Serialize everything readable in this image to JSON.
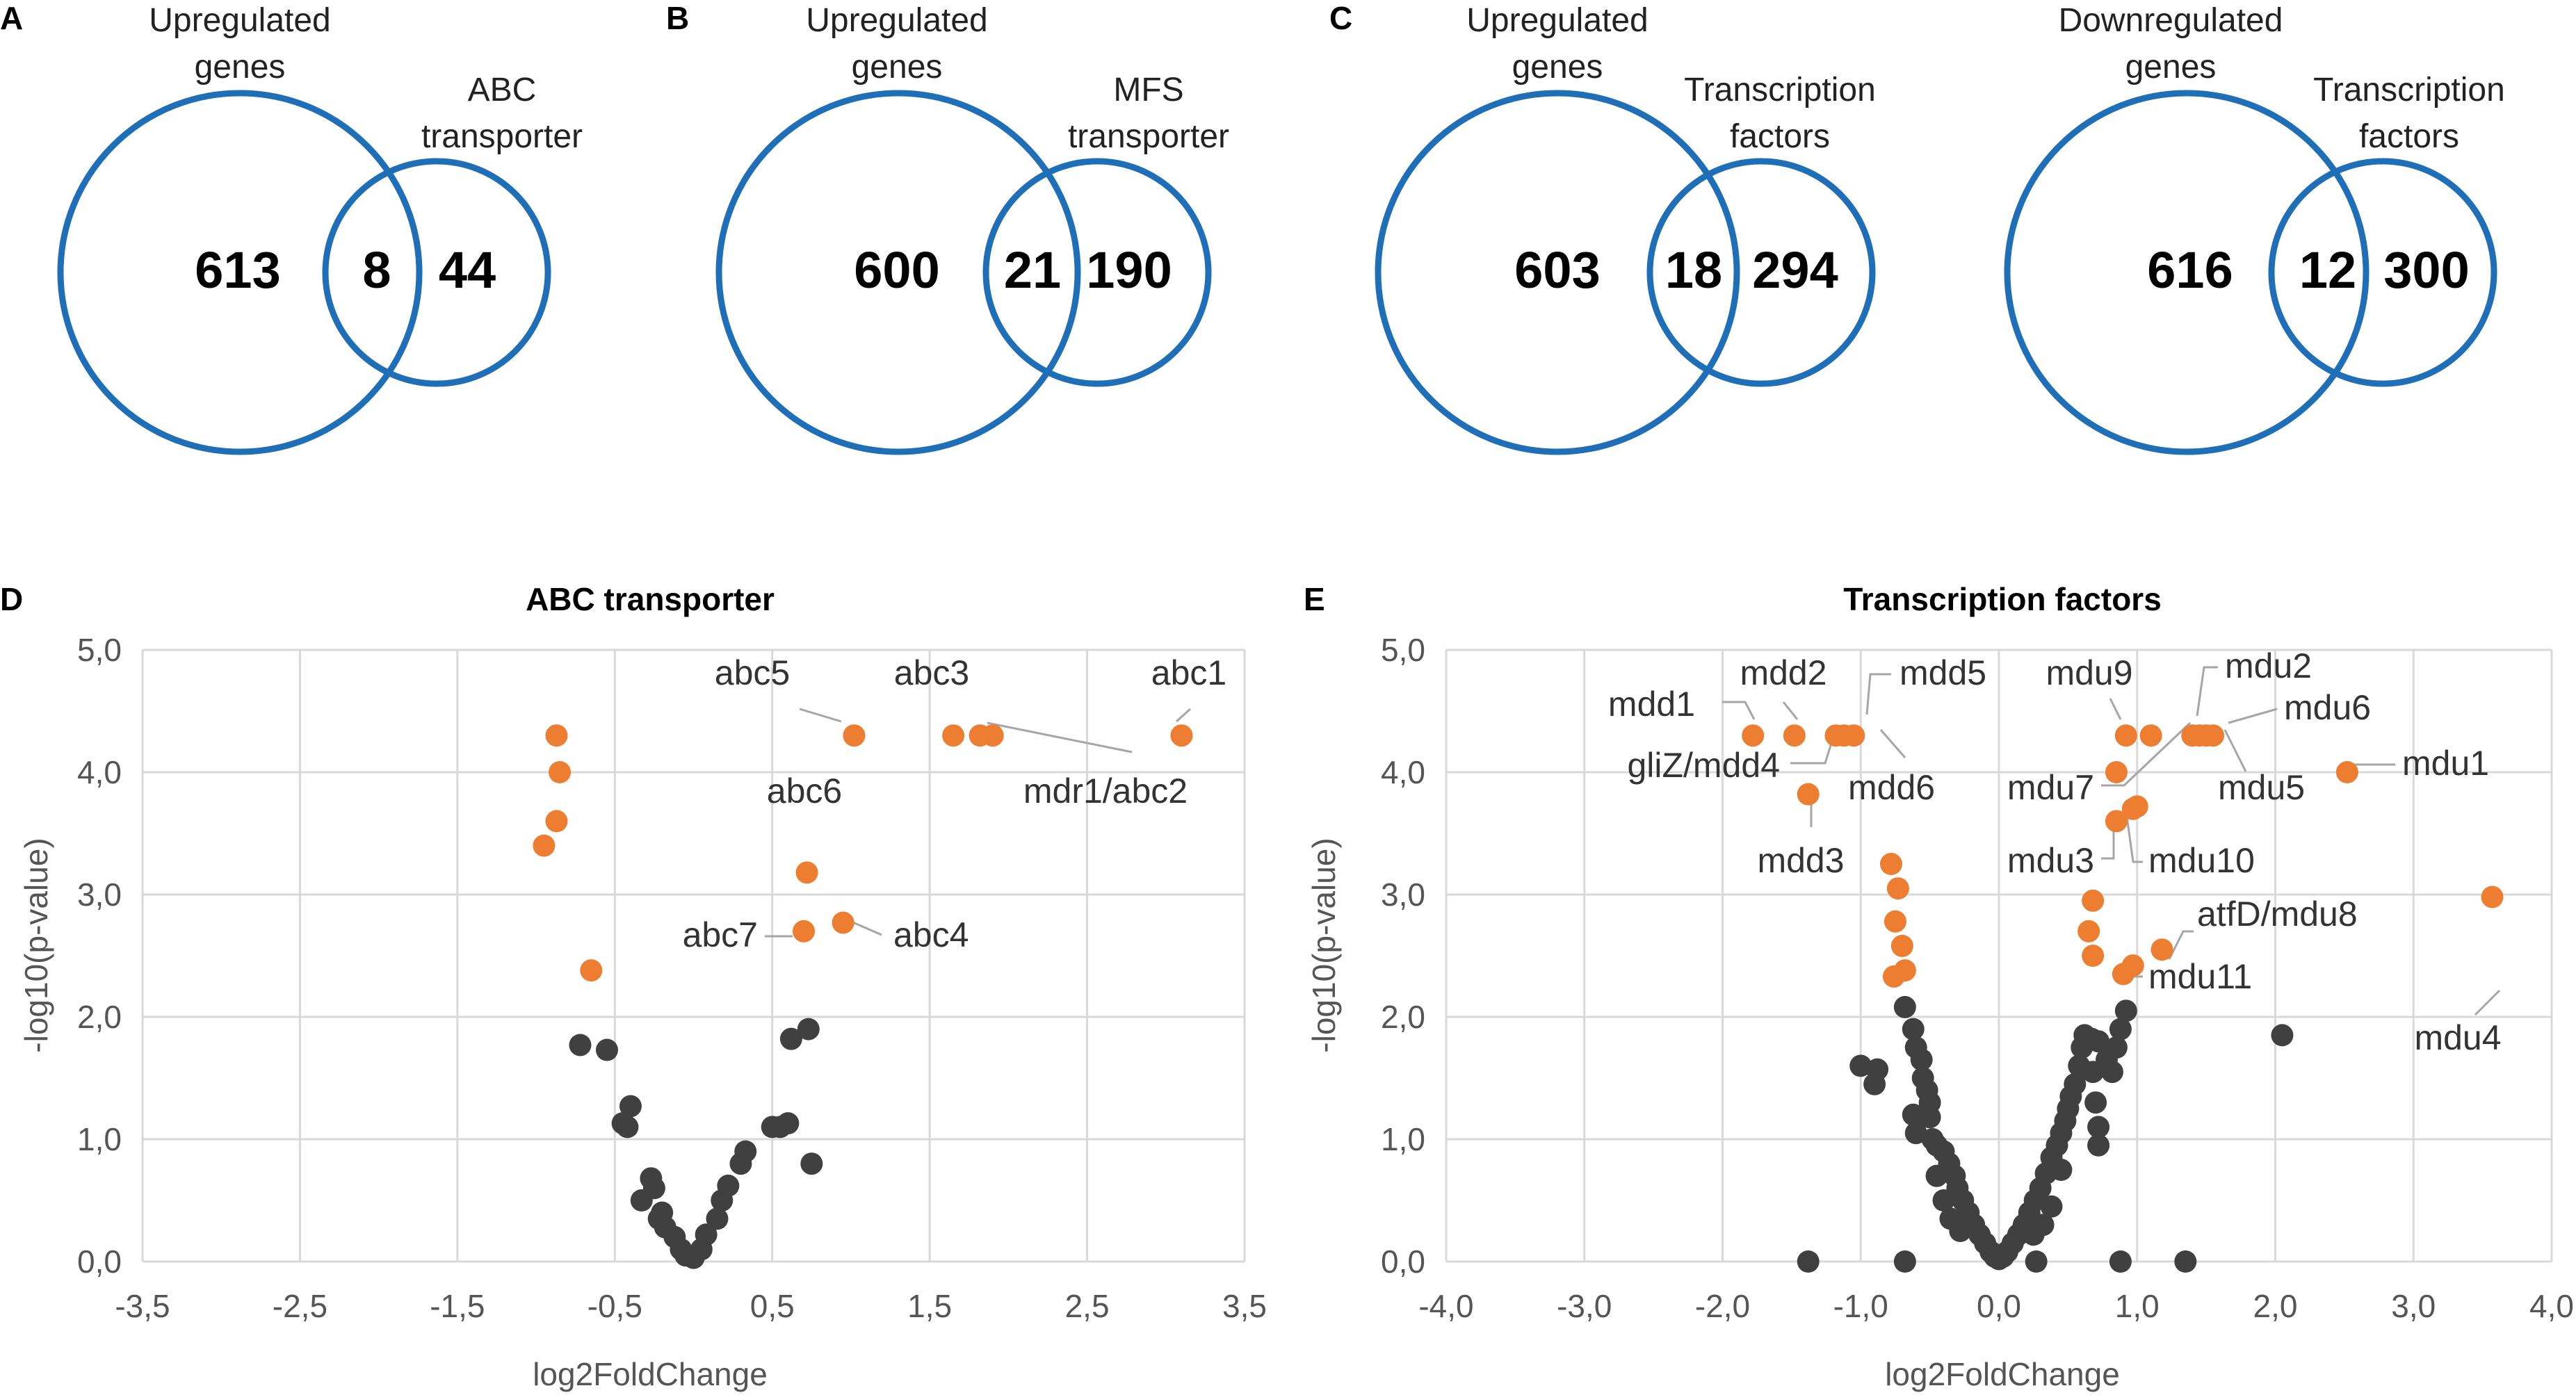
{
  "panels": {
    "A": "A",
    "B": "B",
    "C": "C",
    "D": "D",
    "E": "E"
  },
  "venns": [
    {
      "panel": "A",
      "left_label": [
        "Upregulated",
        "genes"
      ],
      "right_label": [
        "ABC",
        "transporter"
      ],
      "left_only": "613",
      "overlap": "8",
      "right_only": "44"
    },
    {
      "panel": "B",
      "left_label": [
        "Upregulated",
        "genes"
      ],
      "right_label": [
        "MFS",
        "transporter"
      ],
      "left_only": "600",
      "overlap": "21",
      "right_only": "190"
    },
    {
      "panel": "C",
      "left_label": [
        "Upregulated",
        "genes"
      ],
      "right_label": [
        "Transcription",
        "factors"
      ],
      "left_only": "603",
      "overlap": "18",
      "right_only": "294"
    },
    {
      "panel": "",
      "left_label": [
        "Downregulated",
        "genes"
      ],
      "right_label": [
        "Transcription",
        "factors"
      ],
      "left_only": "616",
      "overlap": "12",
      "right_only": "300"
    }
  ],
  "colors": {
    "venn": "#1f6fb8",
    "highlight": "#ed7d31",
    "other": "#404040",
    "grid": "#d9d9d9"
  },
  "chart_data": [
    {
      "panel": "D",
      "type": "scatter",
      "title": "ABC transporter",
      "xlabel": "log2FoldChange",
      "ylabel": "-log10(p-value)",
      "xlim": [
        -3.5,
        3.5
      ],
      "ylim": [
        0,
        5
      ],
      "xticks": [
        "-3,5",
        "-2,5",
        "-1,5",
        "-0,5",
        "0,5",
        "1,5",
        "2,5",
        "3,5"
      ],
      "xtick_values": [
        -3.5,
        -2.5,
        -1.5,
        -0.5,
        0.5,
        1.5,
        2.5,
        3.5
      ],
      "yticks": [
        "0,0",
        "1,0",
        "2,0",
        "3,0",
        "4,0",
        "5,0"
      ],
      "ytick_values": [
        0,
        1,
        2,
        3,
        4,
        5
      ],
      "grid": true,
      "highlighted": [
        [
          -0.87,
          4.3
        ],
        [
          -0.85,
          4.0
        ],
        [
          -0.87,
          3.6
        ],
        [
          -0.95,
          3.4
        ],
        [
          -0.65,
          2.38
        ],
        [
          1.02,
          4.3
        ],
        [
          1.65,
          4.3
        ],
        [
          1.82,
          4.3
        ],
        [
          1.9,
          4.3
        ],
        [
          3.1,
          4.3
        ],
        [
          0.72,
          3.18
        ],
        [
          0.7,
          2.7
        ],
        [
          0.95,
          2.77
        ]
      ],
      "others": [
        [
          -0.72,
          1.77
        ],
        [
          -0.55,
          1.73
        ],
        [
          -0.45,
          1.13
        ],
        [
          -0.42,
          1.1
        ],
        [
          -0.4,
          1.27
        ],
        [
          -0.33,
          0.5
        ],
        [
          -0.27,
          0.68
        ],
        [
          -0.25,
          0.6
        ],
        [
          -0.22,
          0.35
        ],
        [
          -0.2,
          0.4
        ],
        [
          -0.18,
          0.28
        ],
        [
          -0.12,
          0.2
        ],
        [
          -0.08,
          0.1
        ],
        [
          -0.05,
          0.05
        ],
        [
          0.0,
          0.03
        ],
        [
          0.05,
          0.1
        ],
        [
          0.08,
          0.22
        ],
        [
          0.15,
          0.35
        ],
        [
          0.18,
          0.5
        ],
        [
          0.22,
          0.62
        ],
        [
          0.3,
          0.8
        ],
        [
          0.33,
          0.9
        ],
        [
          0.5,
          1.1
        ],
        [
          0.55,
          1.1
        ],
        [
          0.6,
          1.13
        ],
        [
          0.62,
          1.82
        ],
        [
          0.73,
          1.9
        ],
        [
          0.75,
          0.8
        ]
      ],
      "labels": [
        {
          "text": "abc5",
          "x": 1.02,
          "y": 4.3
        },
        {
          "text": "abc3",
          "x": 1.65,
          "y": 4.3
        },
        {
          "text": "abc1",
          "x": 3.1,
          "y": 4.3
        },
        {
          "text": "mdr1/abc2",
          "x": 1.9,
          "y": 4.3
        },
        {
          "text": "abc6",
          "x": 0.72,
          "y": 3.18
        },
        {
          "text": "abc7",
          "x": 0.7,
          "y": 2.7
        },
        {
          "text": "abc4",
          "x": 0.95,
          "y": 2.77
        }
      ]
    },
    {
      "panel": "E",
      "type": "scatter",
      "title": "Transcription factors",
      "xlabel": "log2FoldChange",
      "ylabel": "-log10(p-value)",
      "xlim": [
        -4.0,
        4.0
      ],
      "ylim": [
        0,
        5
      ],
      "xticks": [
        "-4,0",
        "-3,0",
        "-2,0",
        "-1,0",
        "0,0",
        "1,0",
        "2,0",
        "3,0",
        "4,0"
      ],
      "xtick_values": [
        -4,
        -3,
        -2,
        -1,
        0,
        1,
        2,
        3,
        4
      ],
      "yticks": [
        "0,0",
        "1,0",
        "2,0",
        "3,0",
        "4,0",
        "5,0"
      ],
      "ytick_values": [
        0,
        1,
        2,
        3,
        4,
        5
      ],
      "grid": true,
      "highlighted": [
        [
          -1.78,
          4.3
        ],
        [
          -1.48,
          4.3
        ],
        [
          -1.18,
          4.3
        ],
        [
          -1.12,
          4.3
        ],
        [
          -1.05,
          4.3
        ],
        [
          -1.38,
          3.82
        ],
        [
          -0.78,
          3.25
        ],
        [
          -0.73,
          3.05
        ],
        [
          -0.75,
          2.78
        ],
        [
          -0.7,
          2.58
        ],
        [
          -0.68,
          2.38
        ],
        [
          -0.76,
          2.33
        ],
        [
          0.92,
          4.3
        ],
        [
          1.1,
          4.3
        ],
        [
          1.4,
          4.3
        ],
        [
          1.45,
          4.3
        ],
        [
          1.5,
          4.3
        ],
        [
          1.55,
          4.3
        ],
        [
          0.85,
          4.0
        ],
        [
          2.52,
          4.0
        ],
        [
          0.97,
          3.7
        ],
        [
          0.85,
          3.6
        ],
        [
          1.0,
          3.72
        ],
        [
          0.68,
          2.95
        ],
        [
          0.65,
          2.7
        ],
        [
          0.68,
          2.5
        ],
        [
          1.18,
          2.55
        ],
        [
          0.97,
          2.42
        ],
        [
          0.9,
          2.35
        ],
        [
          3.57,
          2.98
        ]
      ],
      "others": [
        [
          -1.38,
          0.0
        ],
        [
          -0.68,
          0.0
        ],
        [
          0.27,
          0.0
        ],
        [
          0.88,
          0.0
        ],
        [
          1.35,
          0.0
        ],
        [
          2.05,
          1.85
        ],
        [
          -1.0,
          1.6
        ],
        [
          -0.88,
          1.57
        ],
        [
          -0.9,
          1.45
        ],
        [
          -0.68,
          2.08
        ],
        [
          -0.62,
          1.9
        ],
        [
          -0.6,
          1.75
        ],
        [
          -0.56,
          1.65
        ],
        [
          -0.55,
          1.5
        ],
        [
          -0.52,
          1.4
        ],
        [
          -0.5,
          1.3
        ],
        [
          -0.62,
          1.2
        ],
        [
          -0.6,
          1.05
        ],
        [
          -0.5,
          1.18
        ],
        [
          -0.48,
          1.0
        ],
        [
          -0.45,
          0.95
        ],
        [
          -0.4,
          0.9
        ],
        [
          -0.36,
          0.8
        ],
        [
          -0.32,
          0.7
        ],
        [
          -0.3,
          0.6
        ],
        [
          -0.26,
          0.5
        ],
        [
          -0.22,
          0.4
        ],
        [
          -0.18,
          0.3
        ],
        [
          -0.14,
          0.22
        ],
        [
          -0.1,
          0.15
        ],
        [
          -0.06,
          0.08
        ],
        [
          -0.03,
          0.04
        ],
        [
          0.0,
          0.02
        ],
        [
          0.03,
          0.04
        ],
        [
          0.06,
          0.08
        ],
        [
          0.1,
          0.15
        ],
        [
          0.14,
          0.22
        ],
        [
          0.18,
          0.3
        ],
        [
          0.22,
          0.4
        ],
        [
          0.26,
          0.5
        ],
        [
          0.3,
          0.6
        ],
        [
          0.34,
          0.72
        ],
        [
          0.38,
          0.85
        ],
        [
          0.42,
          0.95
        ],
        [
          0.45,
          1.05
        ],
        [
          0.48,
          1.15
        ],
        [
          0.5,
          1.25
        ],
        [
          0.52,
          1.35
        ],
        [
          0.55,
          1.45
        ],
        [
          0.58,
          1.6
        ],
        [
          0.6,
          1.75
        ],
        [
          0.62,
          1.85
        ],
        [
          0.67,
          1.82
        ],
        [
          0.72,
          1.8
        ],
        [
          0.78,
          1.65
        ],
        [
          0.82,
          1.55
        ],
        [
          0.85,
          1.75
        ],
        [
          0.88,
          1.9
        ],
        [
          0.92,
          2.05
        ],
        [
          0.7,
          1.3
        ],
        [
          0.72,
          1.1
        ],
        [
          0.72,
          0.95
        ],
        [
          0.68,
          1.55
        ],
        [
          -0.4,
          0.5
        ],
        [
          -0.35,
          0.35
        ],
        [
          0.38,
          0.45
        ],
        [
          0.32,
          0.3
        ],
        [
          -0.28,
          0.25
        ],
        [
          0.25,
          0.22
        ],
        [
          -0.45,
          0.7
        ],
        [
          0.45,
          0.75
        ]
      ],
      "labels": [
        {
          "text": "mdd1",
          "x": -1.78,
          "y": 4.3
        },
        {
          "text": "mdd2",
          "x": -1.48,
          "y": 4.3
        },
        {
          "text": "mdd5",
          "x": -1.12,
          "y": 4.3
        },
        {
          "text": "gliZ/mdd4",
          "x": -1.18,
          "y": 4.3
        },
        {
          "text": "mdd6",
          "x": -1.05,
          "y": 4.3
        },
        {
          "text": "mdd3",
          "x": -1.38,
          "y": 3.82
        },
        {
          "text": "mdu9",
          "x": 1.1,
          "y": 4.3
        },
        {
          "text": "mdu2",
          "x": 1.4,
          "y": 4.3
        },
        {
          "text": "mdu6",
          "x": 1.5,
          "y": 4.3
        },
        {
          "text": "mdu7",
          "x": 0.92,
          "y": 4.3
        },
        {
          "text": "mdu5",
          "x": 1.55,
          "y": 4.3
        },
        {
          "text": "mdu1",
          "x": 2.52,
          "y": 4.0
        },
        {
          "text": "mdu3",
          "x": 0.85,
          "y": 3.6
        },
        {
          "text": "mdu10",
          "x": 1.0,
          "y": 3.72
        },
        {
          "text": "atfD/mdu8",
          "x": 1.18,
          "y": 2.55
        },
        {
          "text": "mdu11",
          "x": 0.97,
          "y": 2.42
        },
        {
          "text": "mdu4",
          "x": 3.57,
          "y": 2.98
        }
      ]
    }
  ]
}
